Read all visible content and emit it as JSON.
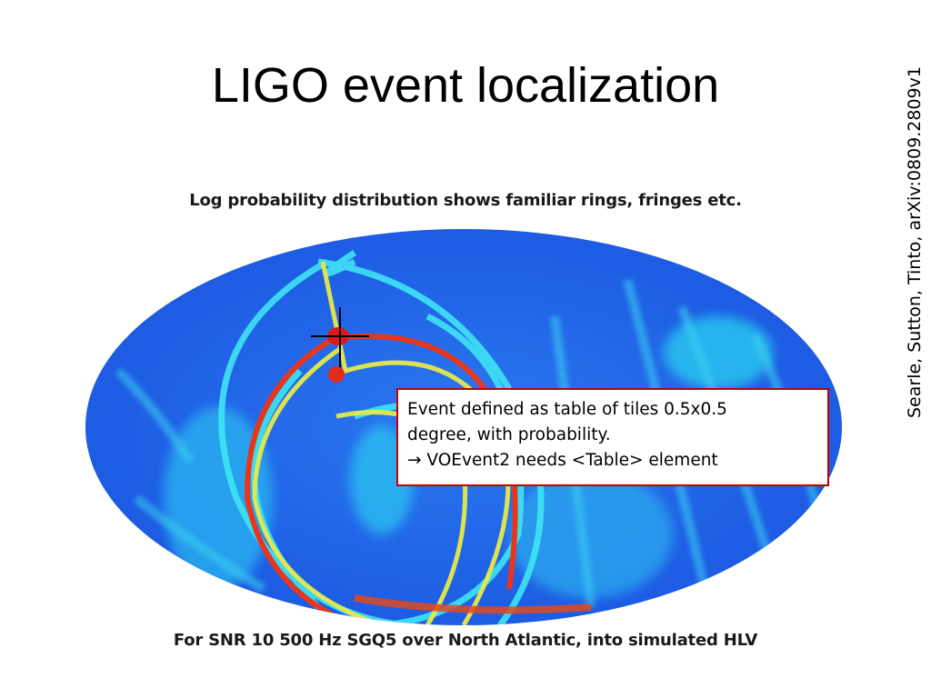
{
  "slide": {
    "title": "LIGO event localization",
    "credit": "Searle, Sutton, Tinto, arXiv:0809.2809v1"
  },
  "figure": {
    "caption_top": "Log probability distribution shows familiar rings, fringes etc.",
    "caption_bottom": "For SNR 10 500 Hz SGQ5 over North Atlantic, into simulated HLV",
    "colors": {
      "background": "#1f5fe6",
      "cyan": "#34e0f4",
      "yellow": "#e8e84a",
      "red": "#e01818"
    }
  },
  "callout": {
    "line1": "Event defined as table of tiles 0.5x0.5",
    "line2": "degree, with probability.",
    "line3": "→ VOEvent2 needs <Table> element",
    "border_color": "#c00000"
  }
}
